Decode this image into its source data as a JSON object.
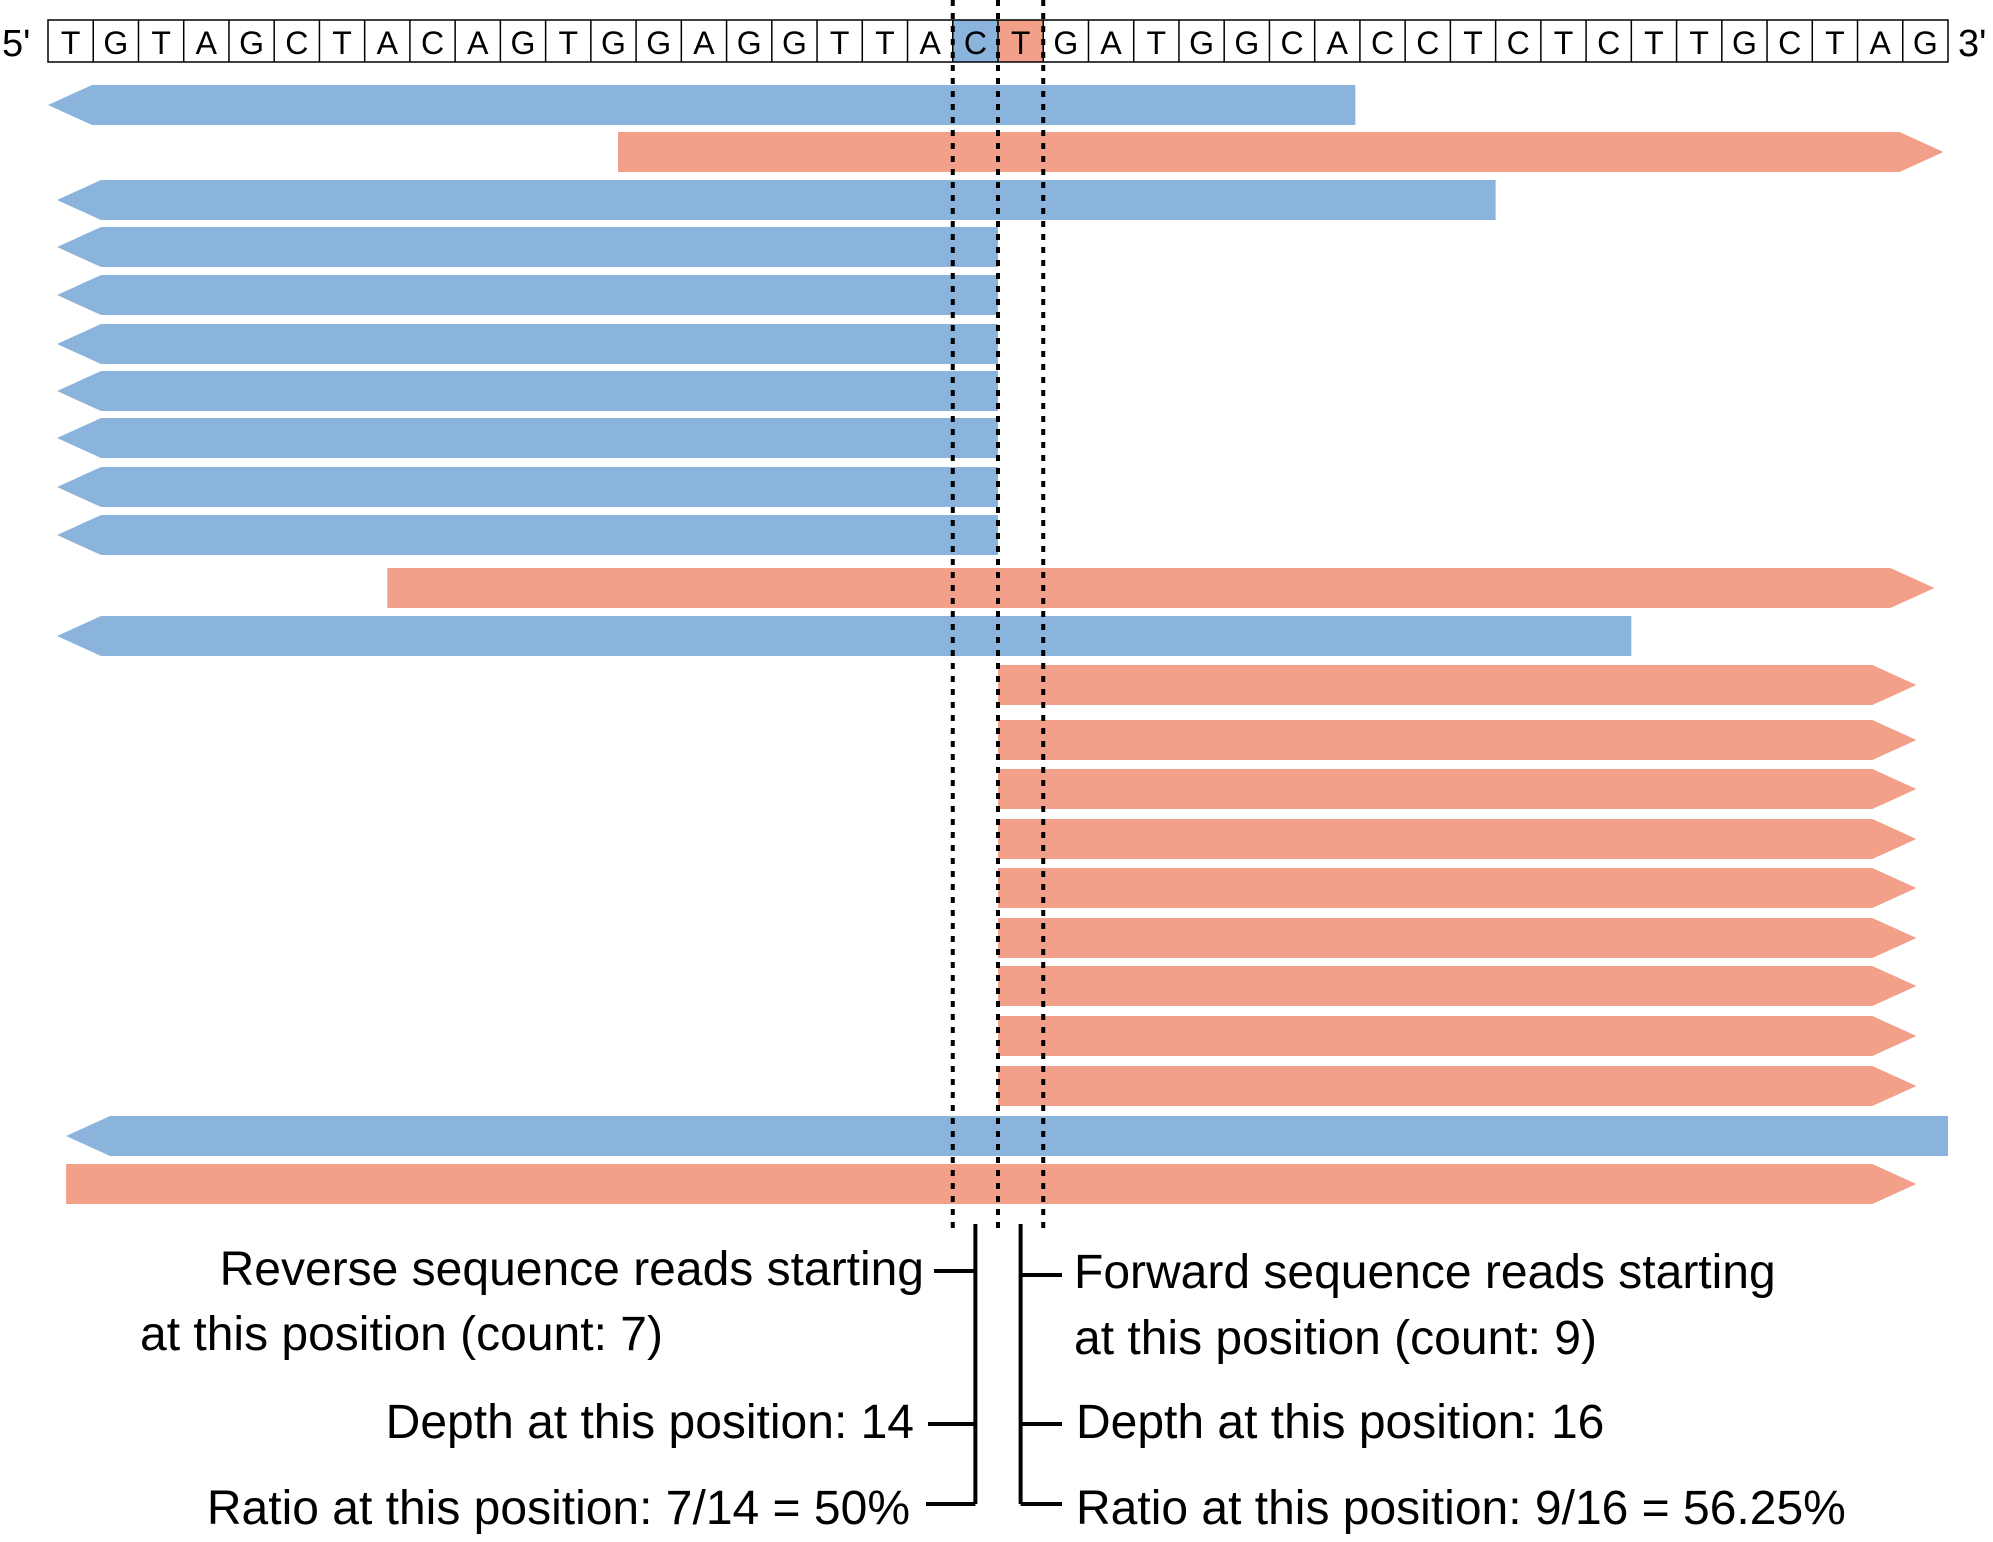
{
  "sequence": {
    "five_prime_label": "5'",
    "three_prime_label": "3'",
    "bases": [
      "T",
      "G",
      "T",
      "A",
      "G",
      "C",
      "T",
      "A",
      "C",
      "A",
      "G",
      "T",
      "G",
      "G",
      "A",
      "G",
      "G",
      "T",
      "T",
      "A",
      "C",
      "T",
      "G",
      "A",
      "T",
      "G",
      "G",
      "C",
      "A",
      "C",
      "C",
      "T",
      "C",
      "T",
      "C",
      "T",
      "T",
      "G",
      "C",
      "T",
      "A",
      "G"
    ],
    "highlight": [
      {
        "base_index": 20,
        "strand": "reverse"
      },
      {
        "base_index": 21,
        "strand": "forward"
      }
    ]
  },
  "colors": {
    "reverse": "#8ab4dc",
    "forward": "#f3a08a",
    "line": "#000000",
    "background": "#ffffff"
  },
  "reads": [
    {
      "strand": "reverse",
      "start_base": 0,
      "end_base": 28.9
    },
    {
      "strand": "forward",
      "start_base": 12.6,
      "end_base": 41.9
    },
    {
      "strand": "reverse",
      "start_base": 0.2,
      "end_base": 32.0
    },
    {
      "strand": "reverse",
      "start_base": 0.2,
      "end_base": 21.0
    },
    {
      "strand": "reverse",
      "start_base": 0.2,
      "end_base": 21.0
    },
    {
      "strand": "reverse",
      "start_base": 0.2,
      "end_base": 21.0
    },
    {
      "strand": "reverse",
      "start_base": 0.2,
      "end_base": 21.0
    },
    {
      "strand": "reverse",
      "start_base": 0.2,
      "end_base": 21.0
    },
    {
      "strand": "reverse",
      "start_base": 0.2,
      "end_base": 21.0
    },
    {
      "strand": "reverse",
      "start_base": 0.2,
      "end_base": 21.0
    },
    {
      "strand": "forward",
      "start_base": 7.5,
      "end_base": 41.7
    },
    {
      "strand": "reverse",
      "start_base": 0.2,
      "end_base": 35.0
    },
    {
      "strand": "forward",
      "start_base": 21.0,
      "end_base": 41.3
    },
    {
      "strand": "forward",
      "start_base": 21.0,
      "end_base": 41.3
    },
    {
      "strand": "forward",
      "start_base": 21.0,
      "end_base": 41.3
    },
    {
      "strand": "forward",
      "start_base": 21.0,
      "end_base": 41.3
    },
    {
      "strand": "forward",
      "start_base": 21.0,
      "end_base": 41.3
    },
    {
      "strand": "forward",
      "start_base": 21.0,
      "end_base": 41.3
    },
    {
      "strand": "forward",
      "start_base": 21.0,
      "end_base": 41.3
    },
    {
      "strand": "forward",
      "start_base": 21.0,
      "end_base": 41.3
    },
    {
      "strand": "forward",
      "start_base": 21.0,
      "end_base": 41.3
    },
    {
      "strand": "reverse",
      "start_base": 0.4,
      "end_base": 42.0
    },
    {
      "strand": "forward",
      "start_base": 0.4,
      "end_base": 41.3
    }
  ],
  "annotations": {
    "left": {
      "reads_line1": "Reverse sequence reads starting",
      "reads_line2": "at this position (count: 7)",
      "depth": "Depth at this position: 14",
      "ratio": "Ratio at this position: 7/14 = 50%"
    },
    "right": {
      "reads_line1": "Forward sequence reads starting",
      "reads_line2": "at this position (count: 9)",
      "depth": "Depth at this position: 16",
      "ratio": "Ratio at this position: 9/16 = 56.25%"
    }
  }
}
